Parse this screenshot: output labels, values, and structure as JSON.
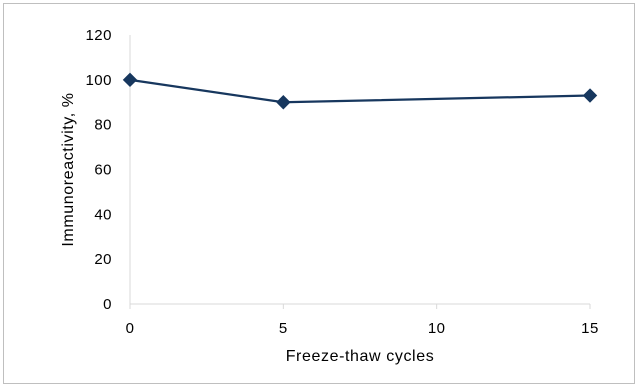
{
  "chart_data": {
    "type": "line",
    "title": "",
    "xlabel": "Freeze-thaw cycles",
    "ylabel": "Immunoreactivity, %",
    "xlim": [
      0,
      15
    ],
    "ylim": [
      0,
      120
    ],
    "x_ticks": [
      0,
      5,
      10,
      15
    ],
    "y_ticks": [
      0,
      20,
      40,
      60,
      80,
      100,
      120
    ],
    "x_tick_labels": [
      "0",
      "5",
      "10",
      "15"
    ],
    "y_tick_labels": [
      "0",
      "20",
      "40",
      "60",
      "80",
      "100",
      "120"
    ],
    "grid": false,
    "legend": false,
    "marker": "diamond",
    "series": [
      {
        "color": "#17375e",
        "x": [
          0,
          5,
          15
        ],
        "y": [
          100,
          90,
          93
        ]
      }
    ]
  }
}
